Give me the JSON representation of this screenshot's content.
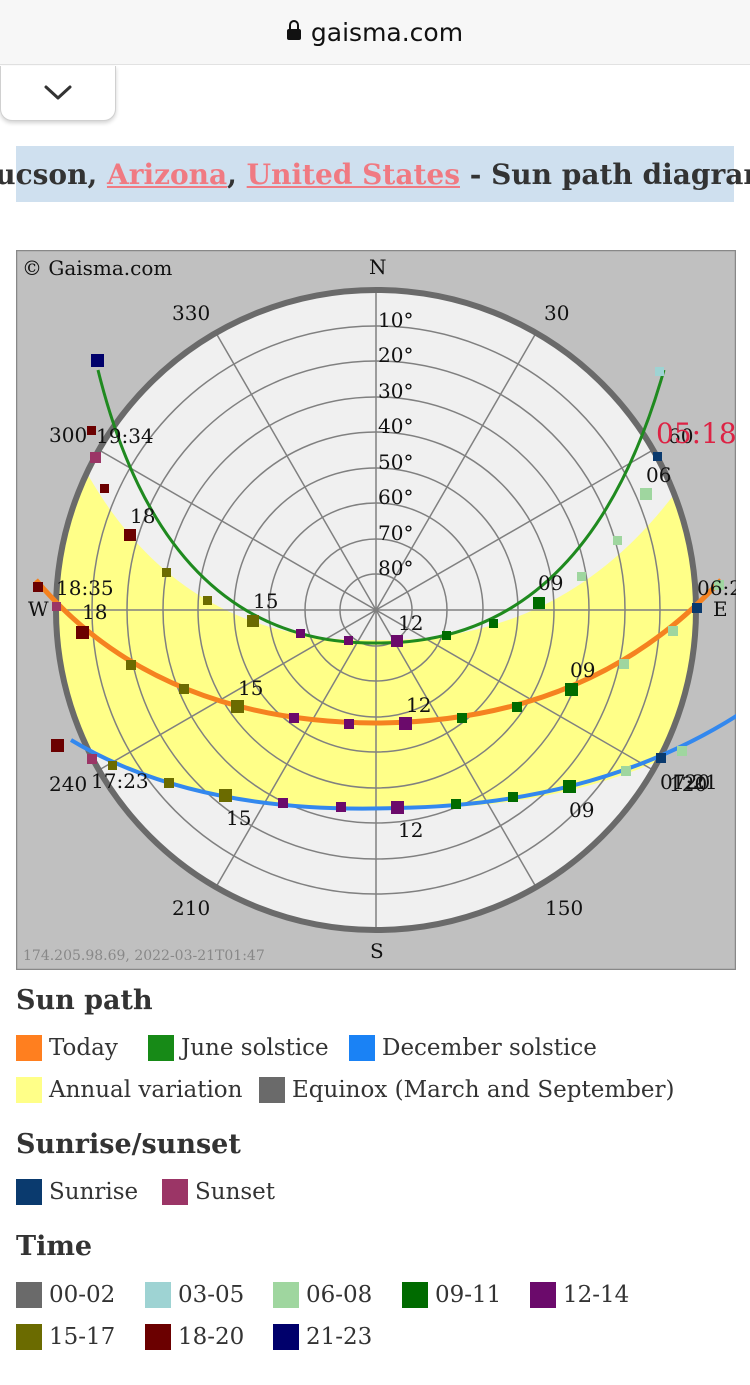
{
  "browser": {
    "url": "gaisma.com"
  },
  "title": {
    "city": "Tucson",
    "state": "Arizona",
    "country": "United States",
    "suffix": "- Sun path diagram",
    "sep": ","
  },
  "diagram": {
    "copyright": "© Gaisma.com",
    "footer": "174.205.98.69, 2022-03-21T01:47",
    "compass": {
      "n": "N",
      "s": "S",
      "e": "E",
      "w": "W"
    },
    "azimuth_labels": [
      "330",
      "30",
      "300",
      "240",
      "120",
      "210",
      "150"
    ],
    "altitude_labels": [
      "10°",
      "20°",
      "30°",
      "40°",
      "50°",
      "60°",
      "70°",
      "80°"
    ],
    "june_labels": {
      "sunset": "19:34",
      "h18": "18",
      "h15": "15",
      "h12": "12",
      "h09": "09",
      "h06": "06",
      "sunrise": "05:18",
      "az": "60"
    },
    "today_labels": {
      "sunset": "18:35",
      "h18": "18",
      "h15": "15",
      "h12": "12",
      "h09": "09",
      "sunrise": "06:2"
    },
    "dec_labels": {
      "sunset": "17:23",
      "h15": "15",
      "h12": "12",
      "h09": "09",
      "sunrise": "07:21",
      "az": "120"
    },
    "colors": {
      "today": "#f58220",
      "june": "#1f8a1f",
      "december": "#3388ee",
      "annual": "#ffff88"
    }
  },
  "legend": {
    "sun_path": {
      "heading": "Sun path",
      "items": [
        {
          "label": "Today",
          "color": "#ff7f1f"
        },
        {
          "label": "June solstice",
          "color": "#178a17"
        },
        {
          "label": "December solstice",
          "color": "#1a82f5"
        },
        {
          "label": "Annual variation",
          "color": "#ffff88"
        },
        {
          "label": "Equinox (March and September)",
          "color": "#6a6a6a"
        }
      ]
    },
    "sunrise_sunset": {
      "heading": "Sunrise/sunset",
      "items": [
        {
          "label": "Sunrise",
          "color": "#0a3a6e"
        },
        {
          "label": "Sunset",
          "color": "#9b3566"
        }
      ]
    },
    "time": {
      "heading": "Time",
      "items": [
        {
          "label": "00-02",
          "color": "#6a6a6a"
        },
        {
          "label": "03-05",
          "color": "#9ed3d3"
        },
        {
          "label": "06-08",
          "color": "#9fd69f"
        },
        {
          "label": "09-11",
          "color": "#006b00"
        },
        {
          "label": "12-14",
          "color": "#6b0a6b"
        },
        {
          "label": "15-17",
          "color": "#6b6b00"
        },
        {
          "label": "18-20",
          "color": "#6b0000"
        },
        {
          "label": "21-23",
          "color": "#00006b"
        }
      ]
    }
  }
}
